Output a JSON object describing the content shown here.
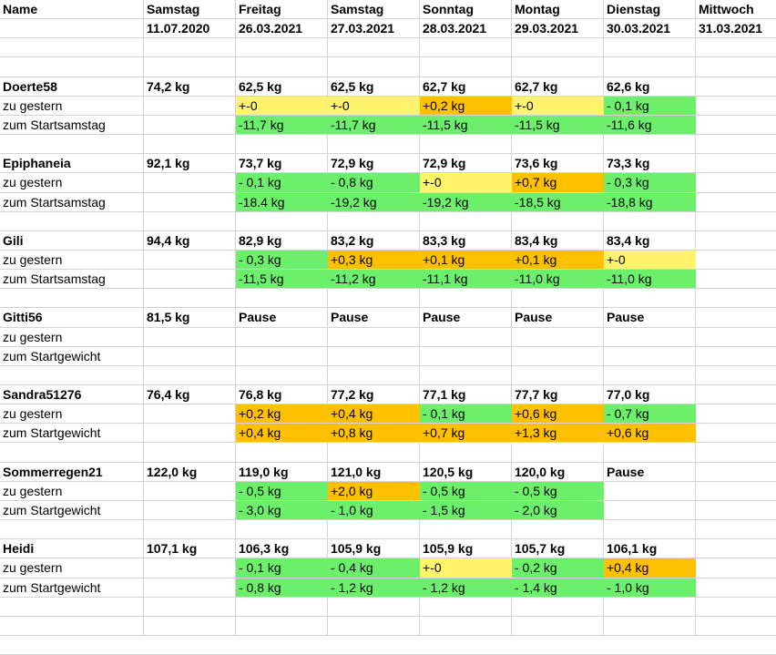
{
  "colors": {
    "green": "#6cf06c",
    "yellow": "#fff46b",
    "orange": "#ffc000",
    "grid": "#d4d4d4"
  },
  "header": {
    "days": [
      "Name",
      "Samstag",
      "Freitag",
      "Samstag",
      "Sonntag",
      "Montag",
      "Dienstag",
      "Mittwoch"
    ],
    "dates": [
      "",
      "11.07.2020",
      "26.03.2021",
      "27.03.2021",
      "28.03.2021",
      "29.03.2021",
      "30.03.2021",
      "31.03.2021"
    ]
  },
  "groups": [
    {
      "name": "Doerte58",
      "start": "74,2 kg",
      "weights": [
        "62,5 kg",
        "62,5 kg",
        "62,7 kg",
        "62,7 kg",
        "62,6 kg",
        ""
      ],
      "rows": [
        {
          "label": "zu gestern",
          "cells": [
            {
              "t": "+-0",
              "c": "yellow"
            },
            {
              "t": "+-0",
              "c": "yellow"
            },
            {
              "t": "+0,2 kg",
              "c": "orange"
            },
            {
              "t": "+-0",
              "c": "yellow"
            },
            {
              "t": "- 0,1 kg",
              "c": "green"
            },
            {
              "t": "",
              "c": ""
            }
          ]
        },
        {
          "label": "zum Startsamstag",
          "cells": [
            {
              "t": "-11,7 kg",
              "c": "green"
            },
            {
              "t": "-11,7 kg",
              "c": "green"
            },
            {
              "t": "-11,5 kg",
              "c": "green"
            },
            {
              "t": "-11,5 kg",
              "c": "green"
            },
            {
              "t": "-11,6 kg",
              "c": "green"
            },
            {
              "t": "",
              "c": ""
            }
          ]
        }
      ]
    },
    {
      "name": "Epiphaneia",
      "start": "92,1 kg",
      "weights": [
        "73,7 kg",
        "72,9 kg",
        "72,9 kg",
        "73,6 kg",
        "73,3 kg",
        ""
      ],
      "rows": [
        {
          "label": "zu gestern",
          "cells": [
            {
              "t": "- 0,1 kg",
              "c": "green"
            },
            {
              "t": "- 0,8 kg",
              "c": "green"
            },
            {
              "t": "+-0",
              "c": "yellow"
            },
            {
              "t": "+0,7 kg",
              "c": "orange"
            },
            {
              "t": "- 0,3 kg",
              "c": "green"
            },
            {
              "t": "",
              "c": ""
            }
          ]
        },
        {
          "label": "zum Startsamstag",
          "cells": [
            {
              "t": "-18.4 kg",
              "c": "green"
            },
            {
              "t": "-19,2 kg",
              "c": "green"
            },
            {
              "t": "-19,2 kg",
              "c": "green"
            },
            {
              "t": "-18,5 kg",
              "c": "green"
            },
            {
              "t": "-18,8 kg",
              "c": "green"
            },
            {
              "t": "",
              "c": ""
            }
          ]
        }
      ]
    },
    {
      "name": "Gili",
      "start": "94,4 kg",
      "weights": [
        "82,9 kg",
        "83,2 kg",
        "83,3 kg",
        "83,4 kg",
        "83,4 kg",
        ""
      ],
      "rows": [
        {
          "label": "zu gestern",
          "cells": [
            {
              "t": "- 0,3 kg",
              "c": "green"
            },
            {
              "t": "+0,3 kg",
              "c": "orange"
            },
            {
              "t": "+0,1 kg",
              "c": "orange"
            },
            {
              "t": "+0,1 kg",
              "c": "orange"
            },
            {
              "t": "+-0",
              "c": "yellow"
            },
            {
              "t": "",
              "c": ""
            }
          ]
        },
        {
          "label": "zum Startsamstag",
          "cells": [
            {
              "t": "-11,5 kg",
              "c": "green"
            },
            {
              "t": "-11,2 kg",
              "c": "green"
            },
            {
              "t": "-11,1 kg",
              "c": "green"
            },
            {
              "t": "-11,0 kg",
              "c": "green"
            },
            {
              "t": "-11,0 kg",
              "c": "green"
            },
            {
              "t": "",
              "c": ""
            }
          ]
        }
      ]
    },
    {
      "name": "Gitti56",
      "start": "81,5 kg",
      "weights": [
        "Pause",
        "Pause",
        "Pause",
        "Pause",
        "Pause",
        ""
      ],
      "rows": [
        {
          "label": "zu gestern",
          "cells": [
            {
              "t": "",
              "c": ""
            },
            {
              "t": "",
              "c": ""
            },
            {
              "t": "",
              "c": ""
            },
            {
              "t": "",
              "c": ""
            },
            {
              "t": "",
              "c": ""
            },
            {
              "t": "",
              "c": ""
            }
          ]
        },
        {
          "label": "zum Startgewicht",
          "cells": [
            {
              "t": "",
              "c": ""
            },
            {
              "t": "",
              "c": ""
            },
            {
              "t": "",
              "c": ""
            },
            {
              "t": "",
              "c": ""
            },
            {
              "t": "",
              "c": ""
            },
            {
              "t": "",
              "c": ""
            }
          ]
        }
      ]
    },
    {
      "name": "Sandra51276",
      "start": "76,4 kg",
      "weights": [
        "76,8 kg",
        "77,2 kg",
        "77,1 kg",
        "77,7 kg",
        "77,0 kg",
        ""
      ],
      "rows": [
        {
          "label": "zu gestern",
          "cells": [
            {
              "t": "+0,2 kg",
              "c": "orange"
            },
            {
              "t": "+0,4 kg",
              "c": "orange"
            },
            {
              "t": "- 0,1 kg",
              "c": "green"
            },
            {
              "t": "+0,6 kg",
              "c": "orange"
            },
            {
              "t": "- 0,7 kg",
              "c": "green"
            },
            {
              "t": "",
              "c": ""
            }
          ]
        },
        {
          "label": "zum Startgewicht",
          "cells": [
            {
              "t": "+0,4 kg",
              "c": "orange"
            },
            {
              "t": "+0,8 kg",
              "c": "orange"
            },
            {
              "t": "+0,7 kg",
              "c": "orange"
            },
            {
              "t": "+1,3 kg",
              "c": "orange"
            },
            {
              "t": "+0,6 kg",
              "c": "orange"
            },
            {
              "t": "",
              "c": ""
            }
          ]
        }
      ]
    },
    {
      "name": "Sommerregen21",
      "start": "122,0 kg",
      "weights": [
        "119,0 kg",
        "121,0 kg",
        "120,5 kg",
        "120,0 kg",
        "Pause",
        ""
      ],
      "rows": [
        {
          "label": "zu gestern",
          "cells": [
            {
              "t": "- 0,5 kg",
              "c": "green"
            },
            {
              "t": "+2,0 kg",
              "c": "orange"
            },
            {
              "t": "- 0,5 kg",
              "c": "green"
            },
            {
              "t": "- 0,5 kg",
              "c": "green"
            },
            {
              "t": "",
              "c": ""
            },
            {
              "t": "",
              "c": ""
            }
          ]
        },
        {
          "label": "zum Startgewicht",
          "cells": [
            {
              "t": "- 3,0 kg",
              "c": "green"
            },
            {
              "t": "- 1,0 kg",
              "c": "green"
            },
            {
              "t": "- 1,5 kg",
              "c": "green"
            },
            {
              "t": "- 2,0 kg",
              "c": "green"
            },
            {
              "t": "",
              "c": ""
            },
            {
              "t": "",
              "c": ""
            }
          ]
        }
      ]
    },
    {
      "name": "Heidi",
      "start": "107,1 kg",
      "weights": [
        "106,3 kg",
        "105,9 kg",
        "105,9 kg",
        "105,7 kg",
        "106,1 kg",
        ""
      ],
      "rows": [
        {
          "label": "zu gestern",
          "cells": [
            {
              "t": "- 0,1 kg",
              "c": "green"
            },
            {
              "t": "- 0,4 kg",
              "c": "green"
            },
            {
              "t": "+-0",
              "c": "yellow"
            },
            {
              "t": "- 0,2 kg",
              "c": "green"
            },
            {
              "t": "+0,4 kg",
              "c": "orange"
            },
            {
              "t": "",
              "c": ""
            }
          ]
        },
        {
          "label": "zum Startgewicht",
          "cells": [
            {
              "t": "- 0,8 kg",
              "c": "green"
            },
            {
              "t": "- 1,2 kg",
              "c": "green"
            },
            {
              "t": "- 1,2 kg",
              "c": "green"
            },
            {
              "t": "- 1,4 kg",
              "c": "green"
            },
            {
              "t": "- 1,0 kg",
              "c": "green"
            },
            {
              "t": "",
              "c": ""
            }
          ]
        }
      ]
    }
  ]
}
